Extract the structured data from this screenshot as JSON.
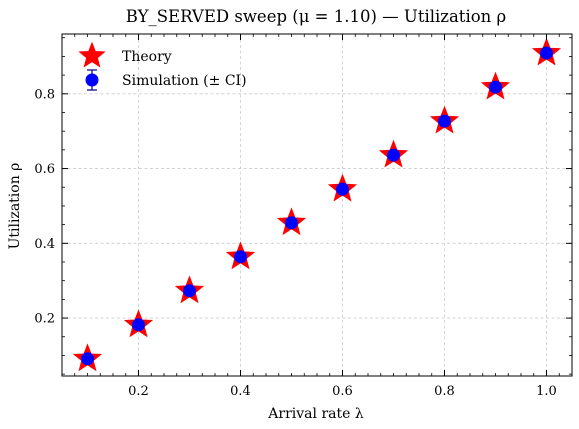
{
  "chart_data": {
    "type": "scatter",
    "title": "BY_SERVED sweep (μ = 1.10) — Utilization ρ",
    "xlabel": "Arrival rate λ",
    "ylabel": "Utilization ρ",
    "xlim": [
      0.05,
      1.05
    ],
    "ylim": [
      0.045,
      0.96
    ],
    "xticks": [
      0.2,
      0.4,
      0.6,
      0.8,
      1.0
    ],
    "xtick_labels": [
      "0.2",
      "0.4",
      "0.6",
      "0.8",
      "1.0"
    ],
    "yticks": [
      0.2,
      0.4,
      0.6,
      0.8
    ],
    "ytick_labels": [
      "0.2",
      "0.4",
      "0.6",
      "0.8"
    ],
    "grid": true,
    "legend_position": "top-left",
    "series": [
      {
        "name": "Theory",
        "marker": "star",
        "color": "#ff0000",
        "x": [
          0.1,
          0.2,
          0.3,
          0.4,
          0.5,
          0.6,
          0.7,
          0.8,
          0.9,
          1.0
        ],
        "y": [
          0.091,
          0.182,
          0.273,
          0.364,
          0.455,
          0.545,
          0.636,
          0.727,
          0.818,
          0.909
        ]
      },
      {
        "name": "Simulation (± CI)",
        "marker": "circle",
        "color": "#0000ff",
        "x": [
          0.1,
          0.2,
          0.3,
          0.4,
          0.5,
          0.6,
          0.7,
          0.8,
          0.9,
          1.0
        ],
        "y": [
          0.091,
          0.182,
          0.273,
          0.364,
          0.455,
          0.545,
          0.636,
          0.727,
          0.818,
          0.909
        ]
      }
    ]
  }
}
